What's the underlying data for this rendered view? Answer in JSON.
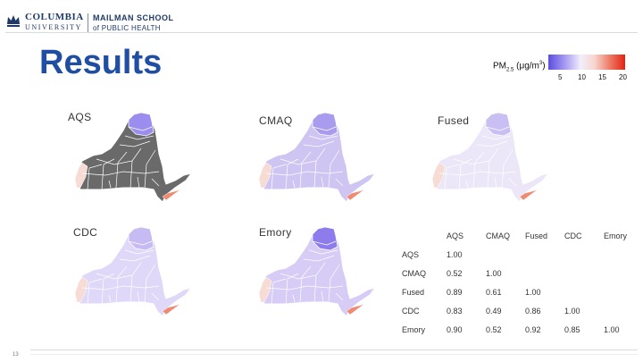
{
  "header": {
    "logo_columbia": "COLUMBIA",
    "logo_university": "UNIVERSITY",
    "logo_mailman_line1": "MAILMAN SCHOOL",
    "logo_mailman_line2": "of PUBLIC HEALTH",
    "brand_color": "#1f3a68"
  },
  "slide": {
    "title": "Results",
    "title_color": "#1f4ea3",
    "page_number": "13"
  },
  "legend": {
    "label_main": "PM",
    "label_sub": "2.5",
    "label_units": " (μg/m",
    "label_sup": "3",
    "label_close": ")",
    "ticks": [
      "5",
      "10",
      "15",
      "20"
    ],
    "color_low": "#5b4fe0",
    "color_mid": "#f2eefb",
    "color_high": "#e02412"
  },
  "maps": {
    "aqs": {
      "label": "AQS",
      "fill": "#6a6a6a",
      "accent": "#9b8cf0"
    },
    "cmaq": {
      "label": "CMAQ",
      "fill": "#cfc5f3",
      "accent": "#a99bee"
    },
    "fused": {
      "label": "Fused",
      "fill": "#ebe6f8",
      "accent": "#c9bff3"
    },
    "cdc": {
      "label": "CDC",
      "fill": "#e0d8f8",
      "accent": "#c7bbf3"
    },
    "emory": {
      "label": "Emory",
      "fill": "#d6ccf6",
      "accent": "#8f7cec"
    }
  },
  "correlation_table": {
    "columns": [
      "",
      "AQS",
      "CMAQ",
      "Fused",
      "CDC",
      "Emory"
    ],
    "rows": [
      {
        "name": "AQS",
        "values": [
          "1.00",
          "",
          "",
          "",
          ""
        ]
      },
      {
        "name": "CMAQ",
        "values": [
          "0.52",
          "1.00",
          "",
          "",
          ""
        ]
      },
      {
        "name": "Fused",
        "values": [
          "0.89",
          "0.61",
          "1.00",
          "",
          ""
        ]
      },
      {
        "name": "CDC",
        "values": [
          "0.83",
          "0.49",
          "0.86",
          "1.00",
          ""
        ]
      },
      {
        "name": "Emory",
        "values": [
          "0.90",
          "0.52",
          "0.92",
          "0.85",
          "1.00"
        ]
      }
    ]
  }
}
